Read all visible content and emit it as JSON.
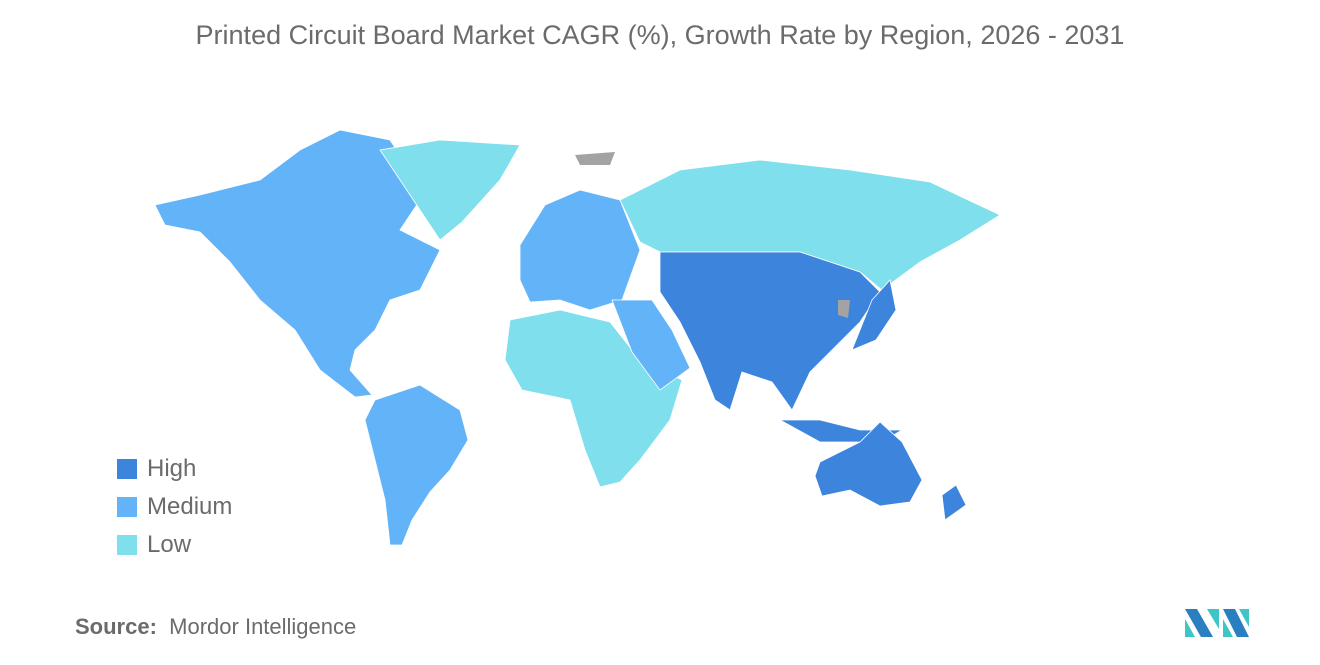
{
  "title": "Printed Circuit Board Market CAGR (%), Growth Rate by Region, 2026 - 2031",
  "legend": [
    {
      "label": "High",
      "color": "#3d84dc"
    },
    {
      "label": "Medium",
      "color": "#62b3f8"
    },
    {
      "label": "Low",
      "color": "#7fdfec"
    }
  ],
  "no_data_color": "#a3a3a3",
  "regions": {
    "north_america": "Medium",
    "south_america": "Medium",
    "europe": "Medium",
    "middle_east": "Medium",
    "greenland": "Low",
    "russia": "Low",
    "africa": "Low",
    "asia": "High",
    "japan": "High",
    "southeast_asia": "High",
    "australia": "High",
    "new_zealand": "High"
  },
  "source": {
    "label": "Source:",
    "value": "Mordor Intelligence"
  }
}
